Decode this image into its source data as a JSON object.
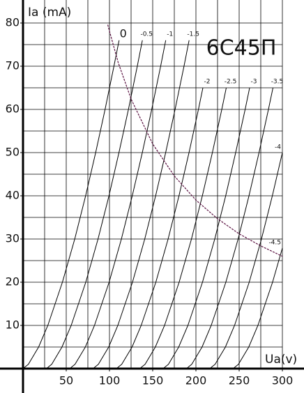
{
  "chart_data": {
    "type": "line",
    "title": "6C45П",
    "y_label": "Ia (mA)",
    "x_label": "Ua(v)",
    "xlim": [
      0,
      325
    ],
    "ylim": [
      0,
      85
    ],
    "xticks": [
      50,
      100,
      150,
      200,
      250,
      300
    ],
    "yticks": [
      10,
      20,
      30,
      40,
      50,
      60,
      70,
      80
    ],
    "xgrid": [
      25,
      50,
      75,
      100,
      125,
      150,
      175,
      200,
      225,
      250,
      275,
      300
    ],
    "ygrid": [
      5,
      10,
      15,
      20,
      25,
      30,
      35,
      40,
      45,
      50,
      55,
      60,
      65,
      70,
      75,
      80
    ],
    "grid": true,
    "series": [
      {
        "name": "0",
        "color": "#000000",
        "x": [
          0,
          6.2,
          18.1,
          28.7,
          45.6,
          59.8,
          72.4,
          84.0,
          94.9,
          105.2,
          111.1
        ],
        "values": [
          0,
          1,
          5,
          10,
          20,
          30,
          40,
          50,
          60,
          70,
          76
        ]
      },
      {
        "name": "-0.5",
        "color": "#000000",
        "x": [
          27,
          33.2,
          45.1,
          55.7,
          72.6,
          86.8,
          99.4,
          111,
          121.9,
          132.2,
          138.1
        ],
        "values": [
          0,
          1,
          5,
          10,
          20,
          30,
          40,
          50,
          60,
          70,
          76
        ]
      },
      {
        "name": "-1",
        "color": "#000000",
        "x": [
          54,
          60.2,
          72.1,
          82.7,
          99.6,
          113.8,
          126.4,
          138,
          148.9,
          159.2,
          165.1
        ],
        "values": [
          0,
          1,
          5,
          10,
          20,
          30,
          40,
          50,
          60,
          70,
          76
        ]
      },
      {
        "name": "-1.5",
        "color": "#000000",
        "x": [
          81,
          87.2,
          99.1,
          109.7,
          126.6,
          140.8,
          153.4,
          165,
          175.9,
          186.2,
          192.1
        ],
        "values": [
          0,
          1,
          5,
          10,
          20,
          30,
          40,
          50,
          60,
          70,
          76
        ]
      },
      {
        "name": "-2",
        "color": "#000000",
        "x": [
          108,
          114.2,
          126.1,
          136.7,
          153.6,
          167.8,
          180.4,
          192,
          202.9,
          208.1
        ],
        "values": [
          0,
          1,
          5,
          10,
          20,
          30,
          40,
          50,
          60,
          65
        ]
      },
      {
        "name": "-2.5",
        "color": "#000000",
        "x": [
          135,
          141.2,
          153.1,
          163.7,
          180.6,
          194.8,
          207.4,
          219,
          229.9,
          235.1
        ],
        "values": [
          0,
          1,
          5,
          10,
          20,
          30,
          40,
          50,
          60,
          65
        ]
      },
      {
        "name": "-3",
        "color": "#000000",
        "x": [
          162,
          168.2,
          180.1,
          190.7,
          207.6,
          221.8,
          234.4,
          246,
          256.9,
          262.1
        ],
        "values": [
          0,
          1,
          5,
          10,
          20,
          30,
          40,
          50,
          60,
          65
        ]
      },
      {
        "name": "-3.5",
        "color": "#000000",
        "x": [
          189,
          195.2,
          207.1,
          217.7,
          234.6,
          248.8,
          261.4,
          273,
          283.9,
          289.1
        ],
        "values": [
          0,
          1,
          5,
          10,
          20,
          30,
          40,
          50,
          60,
          65
        ]
      },
      {
        "name": "-4",
        "color": "#000000",
        "x": [
          216,
          222.2,
          234.1,
          244.7,
          261.6,
          275.8,
          288.4,
          300
        ],
        "values": [
          0,
          1,
          5,
          10,
          20,
          30,
          40,
          50
        ]
      },
      {
        "name": "-4.5",
        "color": "#000000",
        "x": [
          243,
          249.2,
          261.1,
          271.7,
          288.6,
          300
        ],
        "values": [
          0,
          1,
          5,
          10,
          20,
          27.9
        ]
      },
      {
        "color": "#5a1040",
        "dashed": true,
        "x": [
          98,
          110,
          125,
          150,
          175,
          200,
          225,
          250,
          275,
          300
        ],
        "values": [
          79.6,
          70.9,
          62.4,
          52,
          44.6,
          39,
          34.7,
          31.2,
          28.4,
          26
        ]
      }
    ]
  }
}
